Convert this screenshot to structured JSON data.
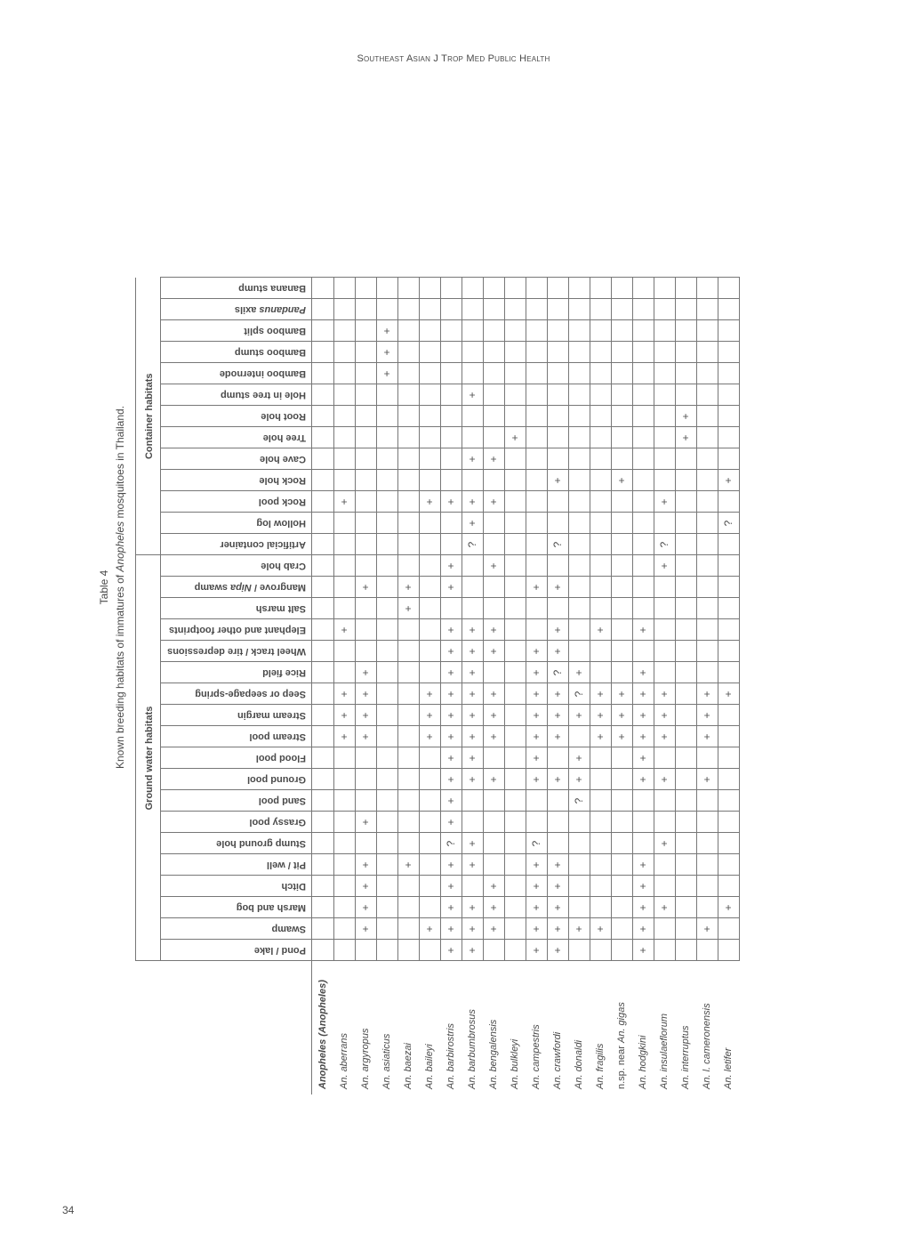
{
  "running_head": "Southeast Asian J Trop Med Public Health",
  "page_number": "34",
  "table_label": "Table 4",
  "table_caption_prefix": "Known breeding habitats of immatures of ",
  "table_caption_genus": "Anopheles",
  "table_caption_suffix": " mosquitoes in Thailand.",
  "groups": [
    {
      "label": "Ground water habitats",
      "span": 19
    },
    {
      "label": "Container habitats",
      "span": 13
    }
  ],
  "habitats": [
    "Pond / lake",
    "Swamp",
    "Marsh and bog",
    "Ditch",
    "Pit / well",
    "Stump ground hole",
    "Grassy pool",
    "Sand pool",
    "Ground pool",
    "Flood pool",
    "Stream pool",
    "Stream margin",
    "Seep or seepage-spring",
    "Rice field",
    "Wheel track / tire depressions",
    "Elephant and other footprints",
    "Salt marsh",
    "Mangrove / Nipa swamp",
    "Crab hole",
    "Artificial container",
    "Hollow log",
    "Rock pool",
    "Rock hole",
    "Cave hole",
    "Tree hole",
    "Root hole",
    "Hole in tree stump",
    "Bamboo internode",
    "Bamboo stump",
    "Bamboo split",
    "Pandanus axils",
    "Banana stump"
  ],
  "species_header": "Anopheles (Anopheles)",
  "species": [
    "An. aberrans",
    "An. argyropus",
    "An. asiaticus",
    "An. baezai",
    "An. baileyi",
    "An. barbirostris",
    "An. barbumbrosus",
    "An. bengalensis",
    "An. bulkleyi",
    "An. campestris",
    "An. crawfordi",
    "An. donaldi",
    "An. fragilis",
    "n.sp. near An. gigas",
    "An. hodgkini",
    "An. insulaeflorum",
    "An. interruptus",
    "An. l. cameronensis",
    "An. letifer"
  ],
  "matrix": [
    [
      "",
      "",
      "",
      "",
      "",
      "",
      "",
      "",
      "",
      "",
      "+",
      "+",
      "+",
      "",
      "",
      "+",
      "",
      "",
      "",
      "",
      "",
      "+",
      "",
      "",
      "",
      "",
      "",
      "",
      "",
      "",
      "",
      ""
    ],
    [
      "",
      "+",
      "+",
      "+",
      "+",
      "",
      "+",
      "",
      "",
      "",
      "+",
      "+",
      "+",
      "+",
      "",
      "",
      "",
      "+",
      "",
      "",
      "",
      "",
      "",
      "",
      "",
      "",
      "",
      "",
      "",
      "",
      "",
      ""
    ],
    [
      "",
      "",
      "",
      "",
      "",
      "",
      "",
      "",
      "",
      "",
      "",
      "",
      "",
      "",
      "",
      "",
      "",
      "",
      "",
      "",
      "",
      "",
      "",
      "",
      "",
      "",
      "",
      "+",
      "+",
      "+",
      "",
      ""
    ],
    [
      "",
      "",
      "",
      "",
      "+",
      "",
      "",
      "",
      "",
      "",
      "",
      "",
      "",
      "",
      "",
      "",
      "+",
      "+",
      "",
      "",
      "",
      "",
      "",
      "",
      "",
      "",
      "",
      "",
      "",
      "",
      "",
      ""
    ],
    [
      "",
      "+",
      "",
      "",
      "",
      "",
      "",
      "",
      "",
      "",
      "+",
      "+",
      "+",
      "",
      "",
      "",
      "",
      "",
      "",
      "",
      "",
      "+",
      "",
      "",
      "",
      "",
      "",
      "",
      "",
      "",
      "",
      ""
    ],
    [
      "+",
      "+",
      "+",
      "+",
      "+",
      "?",
      "+",
      "+",
      "+",
      "+",
      "+",
      "+",
      "+",
      "+",
      "+",
      "+",
      "",
      "+",
      "+",
      "",
      "",
      "+",
      "",
      "",
      "",
      "",
      "",
      "",
      "",
      "",
      "",
      ""
    ],
    [
      "+",
      "+",
      "+",
      "",
      "+",
      "+",
      "",
      "",
      "+",
      "+",
      "+",
      "+",
      "+",
      "+",
      "+",
      "+",
      "",
      "",
      "",
      "?",
      "+",
      "+",
      "",
      "+",
      "",
      "",
      "+",
      "",
      "",
      "",
      "",
      ""
    ],
    [
      "",
      "+",
      "+",
      "+",
      "",
      "",
      "",
      "",
      "+",
      "",
      "+",
      "+",
      "+",
      "",
      "+",
      "+",
      "",
      "",
      "+",
      "",
      "",
      "+",
      "",
      "+",
      "",
      "",
      "",
      "",
      "",
      "",
      "",
      ""
    ],
    [
      "",
      "",
      "",
      "",
      "",
      "",
      "",
      "",
      "",
      "",
      "",
      "",
      "",
      "",
      "",
      "",
      "",
      "",
      "",
      "",
      "",
      "",
      "",
      "",
      "+",
      "",
      "",
      "",
      "",
      "",
      "",
      ""
    ],
    [
      "+",
      "+",
      "+",
      "+",
      "+",
      "?",
      "",
      "",
      "+",
      "+",
      "+",
      "+",
      "+",
      "+",
      "+",
      "",
      "",
      "+",
      "",
      "",
      "",
      "",
      "",
      "",
      "",
      "",
      "",
      "",
      "",
      "",
      "",
      ""
    ],
    [
      "+",
      "+",
      "+",
      "+",
      "+",
      "",
      "",
      "",
      "+",
      "",
      "+",
      "+",
      "+",
      "?",
      "+",
      "+",
      "",
      "+",
      "",
      "?",
      "",
      "",
      "+",
      "",
      "",
      "",
      "",
      "",
      "",
      "",
      "",
      ""
    ],
    [
      "",
      "+",
      "",
      "",
      "",
      "",
      "",
      "?",
      "+",
      "+",
      "",
      "+",
      "?",
      "+",
      "",
      "",
      "",
      "",
      "",
      "",
      "",
      "",
      "",
      "",
      "",
      "",
      "",
      "",
      "",
      "",
      "",
      ""
    ],
    [
      "",
      "+",
      "",
      "",
      "",
      "",
      "",
      "",
      "",
      "",
      "+",
      "+",
      "+",
      "",
      "",
      "+",
      "",
      "",
      "",
      "",
      "",
      "",
      "",
      "",
      "",
      "",
      "",
      "",
      "",
      "",
      "",
      ""
    ],
    [
      "",
      "",
      "",
      "",
      "",
      "",
      "",
      "",
      "",
      "",
      "+",
      "+",
      "+",
      "",
      "",
      "",
      "",
      "",
      "",
      "",
      "",
      "",
      "+",
      "",
      "",
      "",
      "",
      "",
      "",
      "",
      "",
      ""
    ],
    [
      "+",
      "+",
      "+",
      "+",
      "+",
      "",
      "",
      "",
      "+",
      "+",
      "+",
      "+",
      "+",
      "+",
      "",
      "+",
      "",
      "",
      "",
      "",
      "",
      "",
      "",
      "",
      "",
      "",
      "",
      "",
      "",
      "",
      "",
      ""
    ],
    [
      "",
      "",
      "+",
      "",
      "",
      "+",
      "",
      "",
      "+",
      "",
      "+",
      "+",
      "+",
      "",
      "",
      "",
      "",
      "",
      "+",
      "?",
      "",
      "+",
      "",
      "",
      "",
      "",
      "",
      "",
      "",
      "",
      "",
      ""
    ],
    [
      "",
      "",
      "",
      "",
      "",
      "",
      "",
      "",
      "",
      "",
      "",
      "",
      "",
      "",
      "",
      "",
      "",
      "",
      "",
      "",
      "",
      "",
      "",
      "",
      "+",
      "+",
      "",
      "",
      "",
      "",
      "",
      ""
    ],
    [
      "",
      "+",
      "",
      "",
      "",
      "",
      "",
      "",
      "+",
      "",
      "+",
      "+",
      "+",
      "",
      "",
      "",
      "",
      "",
      "",
      "",
      "",
      "",
      "",
      "",
      "",
      "",
      "",
      "",
      "",
      "",
      "",
      ""
    ],
    [
      "",
      "",
      "+",
      "",
      "",
      "",
      "",
      "",
      "",
      "",
      "",
      "",
      "+",
      "",
      "",
      "",
      "",
      "",
      "",
      "",
      "?",
      "",
      "+",
      "",
      "",
      "",
      "",
      "",
      "",
      "",
      "",
      ""
    ]
  ]
}
